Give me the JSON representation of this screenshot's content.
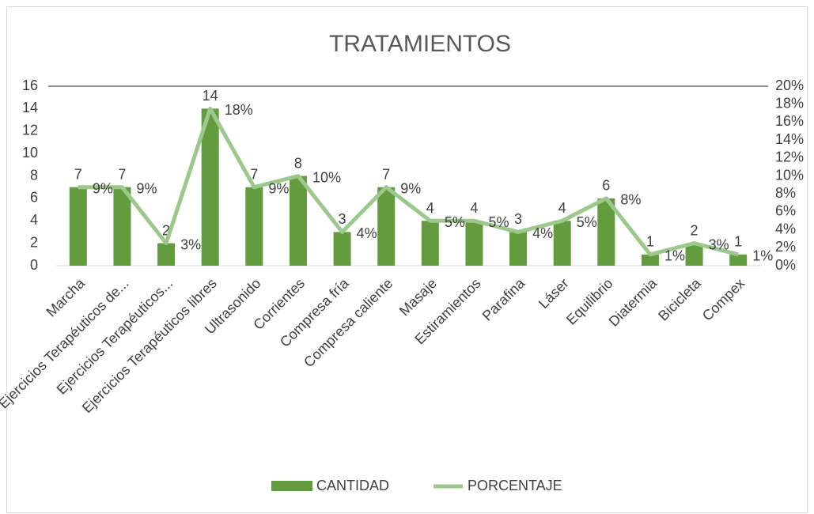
{
  "chart_data": {
    "type": "bar_line",
    "title": "TRATAMIENTOS",
    "categories": [
      "Marcha",
      "Ejercicios Terapéuticos de...",
      "Ejercicios Terapéuticos...",
      "Ejercicios Terapéuticos libres",
      "Ultrasonido",
      "Corrientes",
      "Compresa fría",
      "Compresa caliente",
      "Masaje",
      "Estiramientos",
      "Parafina",
      "Láser",
      "Equilibrio",
      "Diatermia",
      "Bicicleta",
      "Compex"
    ],
    "series": [
      {
        "name": "CANTIDAD",
        "color": "#639c3f",
        "values": [
          7,
          7,
          2,
          14,
          7,
          8,
          3,
          7,
          4,
          4,
          3,
          4,
          6,
          1,
          2,
          1
        ]
      },
      {
        "name": "PORCENTAJE",
        "color": "#9dc88c",
        "axis": "y2",
        "values": [
          8.75,
          8.75,
          2.5,
          17.5,
          8.75,
          10,
          3.75,
          8.75,
          5,
          5,
          3.75,
          5,
          7.5,
          1.25,
          2.5,
          1.25
        ],
        "value_labels": [
          "9%",
          "9%",
          "3%",
          "18%",
          "9%",
          "10%",
          "4%",
          "9%",
          "5%",
          "5%",
          "4%",
          "5%",
          "8%",
          "1%",
          "3%",
          "1%"
        ]
      }
    ],
    "ylim": [
      0,
      16
    ],
    "yticks": [
      0,
      2,
      4,
      6,
      8,
      10,
      12,
      14,
      16
    ],
    "y2lim": [
      0,
      20
    ],
    "y2ticks": [
      {
        "value": 0,
        "label": "0%"
      },
      {
        "value": 2,
        "label": "2%"
      },
      {
        "value": 4,
        "label": "4%"
      },
      {
        "value": 6,
        "label": "6%"
      },
      {
        "value": 8,
        "label": "8%"
      },
      {
        "value": 10,
        "label": "10%"
      },
      {
        "value": 12,
        "label": "12%"
      },
      {
        "value": 14,
        "label": "14%"
      },
      {
        "value": 16,
        "label": "16%"
      },
      {
        "value": 18,
        "label": "18%"
      },
      {
        "value": 20,
        "label": "20%"
      }
    ],
    "legend": "bottom"
  }
}
